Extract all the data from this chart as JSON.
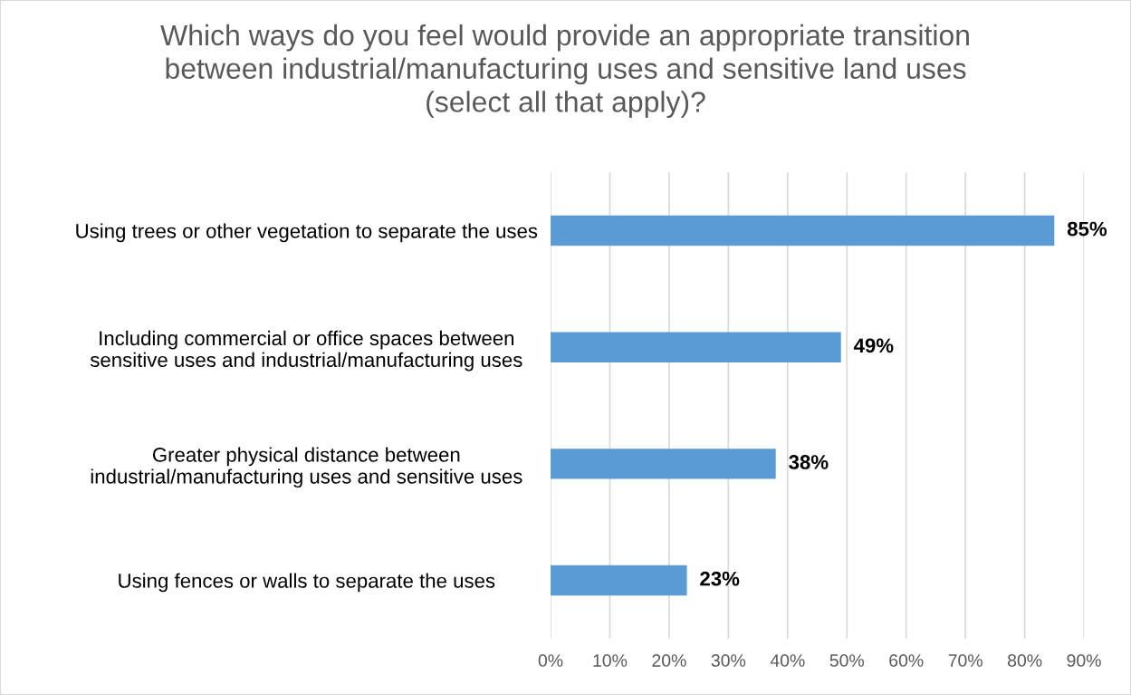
{
  "chart_data": {
    "type": "bar",
    "orientation": "horizontal",
    "title": "Which ways do you feel would provide an appropriate transition\nbetween industrial/manufacturing uses and sensitive land uses\n(select all that apply)?",
    "categories": [
      "Using trees or other vegetation to separate the uses",
      "Including commercial or office spaces between\nsensitive uses and industrial/manufacturing uses",
      "Greater physical distance between\nindustrial/manufacturing uses and sensitive uses",
      "Using fences or walls to separate the uses"
    ],
    "values": [
      85,
      49,
      38,
      23
    ],
    "value_labels": [
      "85%",
      "49%",
      "38%",
      "23%"
    ],
    "color": "#5b9bd5",
    "xlim": [
      0,
      90
    ],
    "xticks": [
      {
        "value": 0,
        "label": "0%"
      },
      {
        "value": 10,
        "label": "10%"
      },
      {
        "value": 20,
        "label": "20%"
      },
      {
        "value": 30,
        "label": "30%"
      },
      {
        "value": 40,
        "label": "40%"
      },
      {
        "value": 50,
        "label": "50%"
      },
      {
        "value": 60,
        "label": "60%"
      },
      {
        "value": 70,
        "label": "70%"
      },
      {
        "value": 80,
        "label": "80%"
      },
      {
        "value": 90,
        "label": "90%"
      }
    ],
    "grid": "x"
  }
}
